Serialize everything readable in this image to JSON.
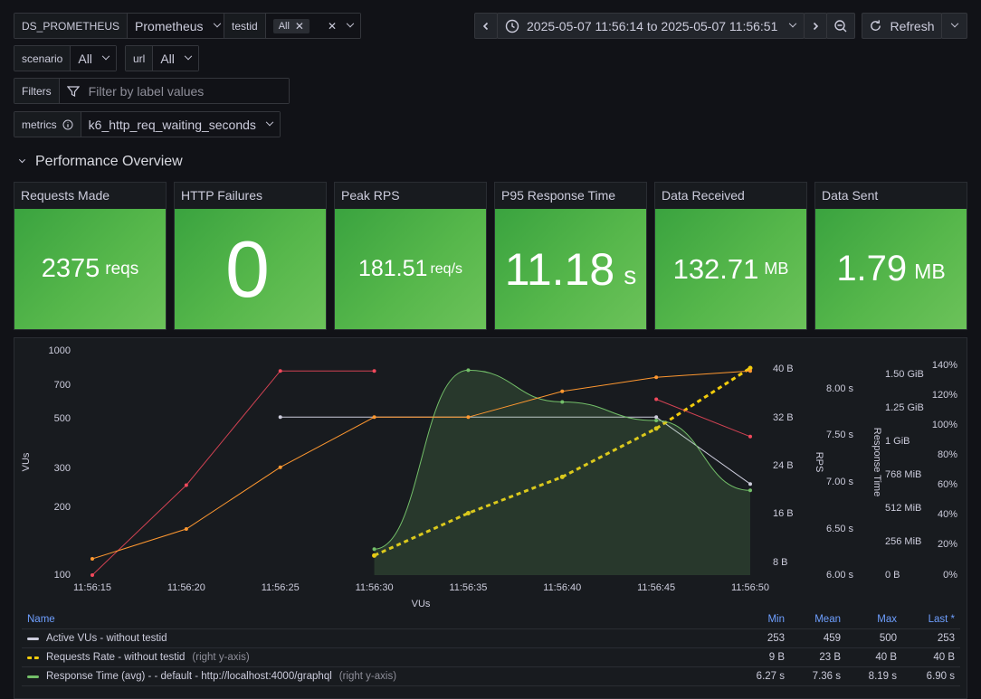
{
  "vars": {
    "ds": {
      "label": "DS_PROMETHEUS",
      "value": "Prometheus"
    },
    "testid": {
      "label": "testid",
      "chip": "All"
    },
    "scenario": {
      "label": "scenario",
      "value": "All"
    },
    "url": {
      "label": "url",
      "value": "All"
    },
    "filters": {
      "label": "Filters",
      "placeholder": "Filter by label values"
    },
    "metrics": {
      "label": "metrics",
      "value": "k6_http_req_waiting_seconds"
    }
  },
  "timepicker": {
    "range": "2025-05-07 11:56:14 to 2025-05-07 11:56:51",
    "refresh_label": "Refresh"
  },
  "row_title": "Performance Overview",
  "stats": [
    {
      "title": "Requests Made",
      "value": "2375",
      "unit": "reqs"
    },
    {
      "title": "HTTP Failures",
      "value": "0",
      "unit": ""
    },
    {
      "title": "Peak RPS",
      "value": "181.51",
      "unit": "req/s"
    },
    {
      "title": "P95 Response Time",
      "value": "11.18",
      "unit": "s"
    },
    {
      "title": "Data Received",
      "value": "132.71",
      "unit": "MB"
    },
    {
      "title": "Data Sent",
      "value": "1.79",
      "unit": "MB"
    }
  ],
  "colors": {
    "green": "#73bf69",
    "yellow": "#f2cc0c",
    "red": "#f2495c",
    "orange": "#ff9830",
    "gray": "#ccccdc"
  },
  "chart_data": {
    "type": "line",
    "x_ticks": [
      "11:56:15",
      "11:56:20",
      "11:56:25",
      "11:56:30",
      "11:56:35",
      "11:56:40",
      "11:56:45",
      "11:56:50"
    ],
    "xlabel": "VUs",
    "left_axis": {
      "label": "VUs",
      "scale": "log",
      "ticks": [
        "1000",
        "700",
        "500",
        "300",
        "200",
        "100"
      ]
    },
    "right_axes": [
      {
        "label": "",
        "ticks": [
          "40 B",
          "32 B",
          "24 B",
          "16 B",
          "8 B"
        ]
      },
      {
        "label": "RPS",
        "ticks": [
          "8.00 s",
          "7.50 s",
          "7.00 s",
          "6.50 s",
          "6.00 s"
        ]
      },
      {
        "label": "Response Time",
        "ticks": [
          "1.50 GiB",
          "1.25 GiB",
          "1 GiB",
          "768 MiB",
          "512 MiB",
          "256 MiB",
          "0 B"
        ]
      },
      {
        "label": "",
        "ticks": [
          "140%",
          "120%",
          "100%",
          "80%",
          "60%",
          "40%",
          "20%",
          "0%"
        ]
      }
    ],
    "series": [
      {
        "name": "Active VUs - without testid",
        "color": "gray",
        "x": [
          "11:56:25",
          "11:56:45",
          "11:56:50"
        ],
        "values": [
          500,
          500,
          253
        ]
      },
      {
        "name": "Requests Rate - without testid",
        "color": "yellow",
        "dashed": true,
        "x": [
          "11:56:30",
          "11:56:35",
          "11:56:40",
          "11:56:45",
          "11:56:50"
        ],
        "values": [
          9,
          16,
          22,
          30,
          40
        ]
      },
      {
        "name": "Response Time (avg) - - default - http://localhost:4000/graphql",
        "color": "green",
        "fill": true,
        "x": [
          "11:56:30",
          "11:56:35",
          "11:56:40",
          "11:56:45",
          "11:56:50"
        ],
        "values": [
          6.27,
          8.19,
          7.85,
          7.65,
          6.9
        ]
      },
      {
        "name": "",
        "color": "red",
        "x": [
          "11:56:15",
          "11:56:20",
          "11:56:25",
          "11:56:30"
        ],
        "values": [
          100,
          250,
          800,
          800
        ]
      },
      {
        "name": "",
        "color": "red",
        "x": [
          "11:56:45",
          "11:56:50"
        ],
        "values": [
          600,
          410
        ]
      },
      {
        "name": "",
        "color": "orange",
        "x": [
          "11:56:15",
          "11:56:20",
          "11:56:25",
          "11:56:30",
          "11:56:35",
          "11:56:40",
          "11:56:45",
          "11:56:50"
        ],
        "values": [
          118,
          160,
          300,
          500,
          500,
          650,
          750,
          800
        ]
      }
    ]
  },
  "legend": {
    "headers": {
      "name": "Name",
      "min": "Min",
      "mean": "Mean",
      "max": "Max",
      "last": "Last *"
    },
    "rows": [
      {
        "name": "Active VUs - without testid",
        "hint": "",
        "min": "253",
        "mean": "459",
        "max": "500",
        "last": "253"
      },
      {
        "name": "Requests Rate - without testid",
        "hint": "(right y-axis)",
        "min": "9 B",
        "mean": "23 B",
        "max": "40 B",
        "last": "40 B"
      },
      {
        "name": "Response Time (avg) - - default - http://localhost:4000/graphql",
        "hint": "(right y-axis)",
        "min": "6.27 s",
        "mean": "7.36 s",
        "max": "8.19 s",
        "last": "6.90 s"
      }
    ]
  }
}
